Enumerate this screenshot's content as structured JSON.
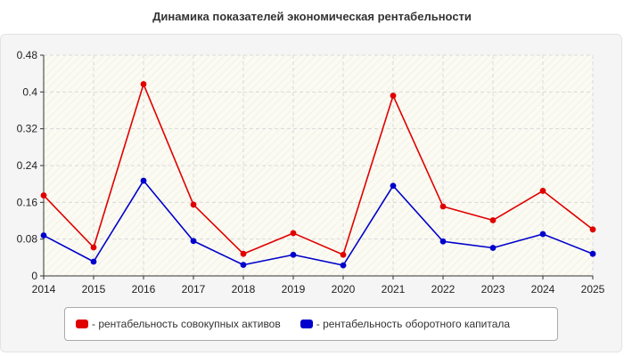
{
  "chart_data": {
    "type": "line",
    "title": "Динамика показателей экономическая рентабельности",
    "categories": [
      "2014",
      "2015",
      "2016",
      "2017",
      "2018",
      "2019",
      "2020",
      "2021",
      "2022",
      "2023",
      "2024",
      "2025"
    ],
    "series": [
      {
        "name": "- рентабельность совокупных активов",
        "color": "#e00000",
        "values": [
          0.175,
          0.062,
          0.417,
          0.155,
          0.048,
          0.093,
          0.046,
          0.392,
          0.151,
          0.121,
          0.185,
          0.101
        ]
      },
      {
        "name": "- рентабельность оборотного капитала",
        "color": "#0000cc",
        "values": [
          0.088,
          0.031,
          0.207,
          0.076,
          0.024,
          0.046,
          0.023,
          0.196,
          0.075,
          0.061,
          0.091,
          0.048
        ]
      }
    ],
    "ylim": [
      0,
      0.48
    ],
    "yticks": [
      "0",
      "0.08",
      "0.16",
      "0.24",
      "0.32",
      "0.4",
      "0.48"
    ],
    "grid": true,
    "legend": "bottom"
  }
}
